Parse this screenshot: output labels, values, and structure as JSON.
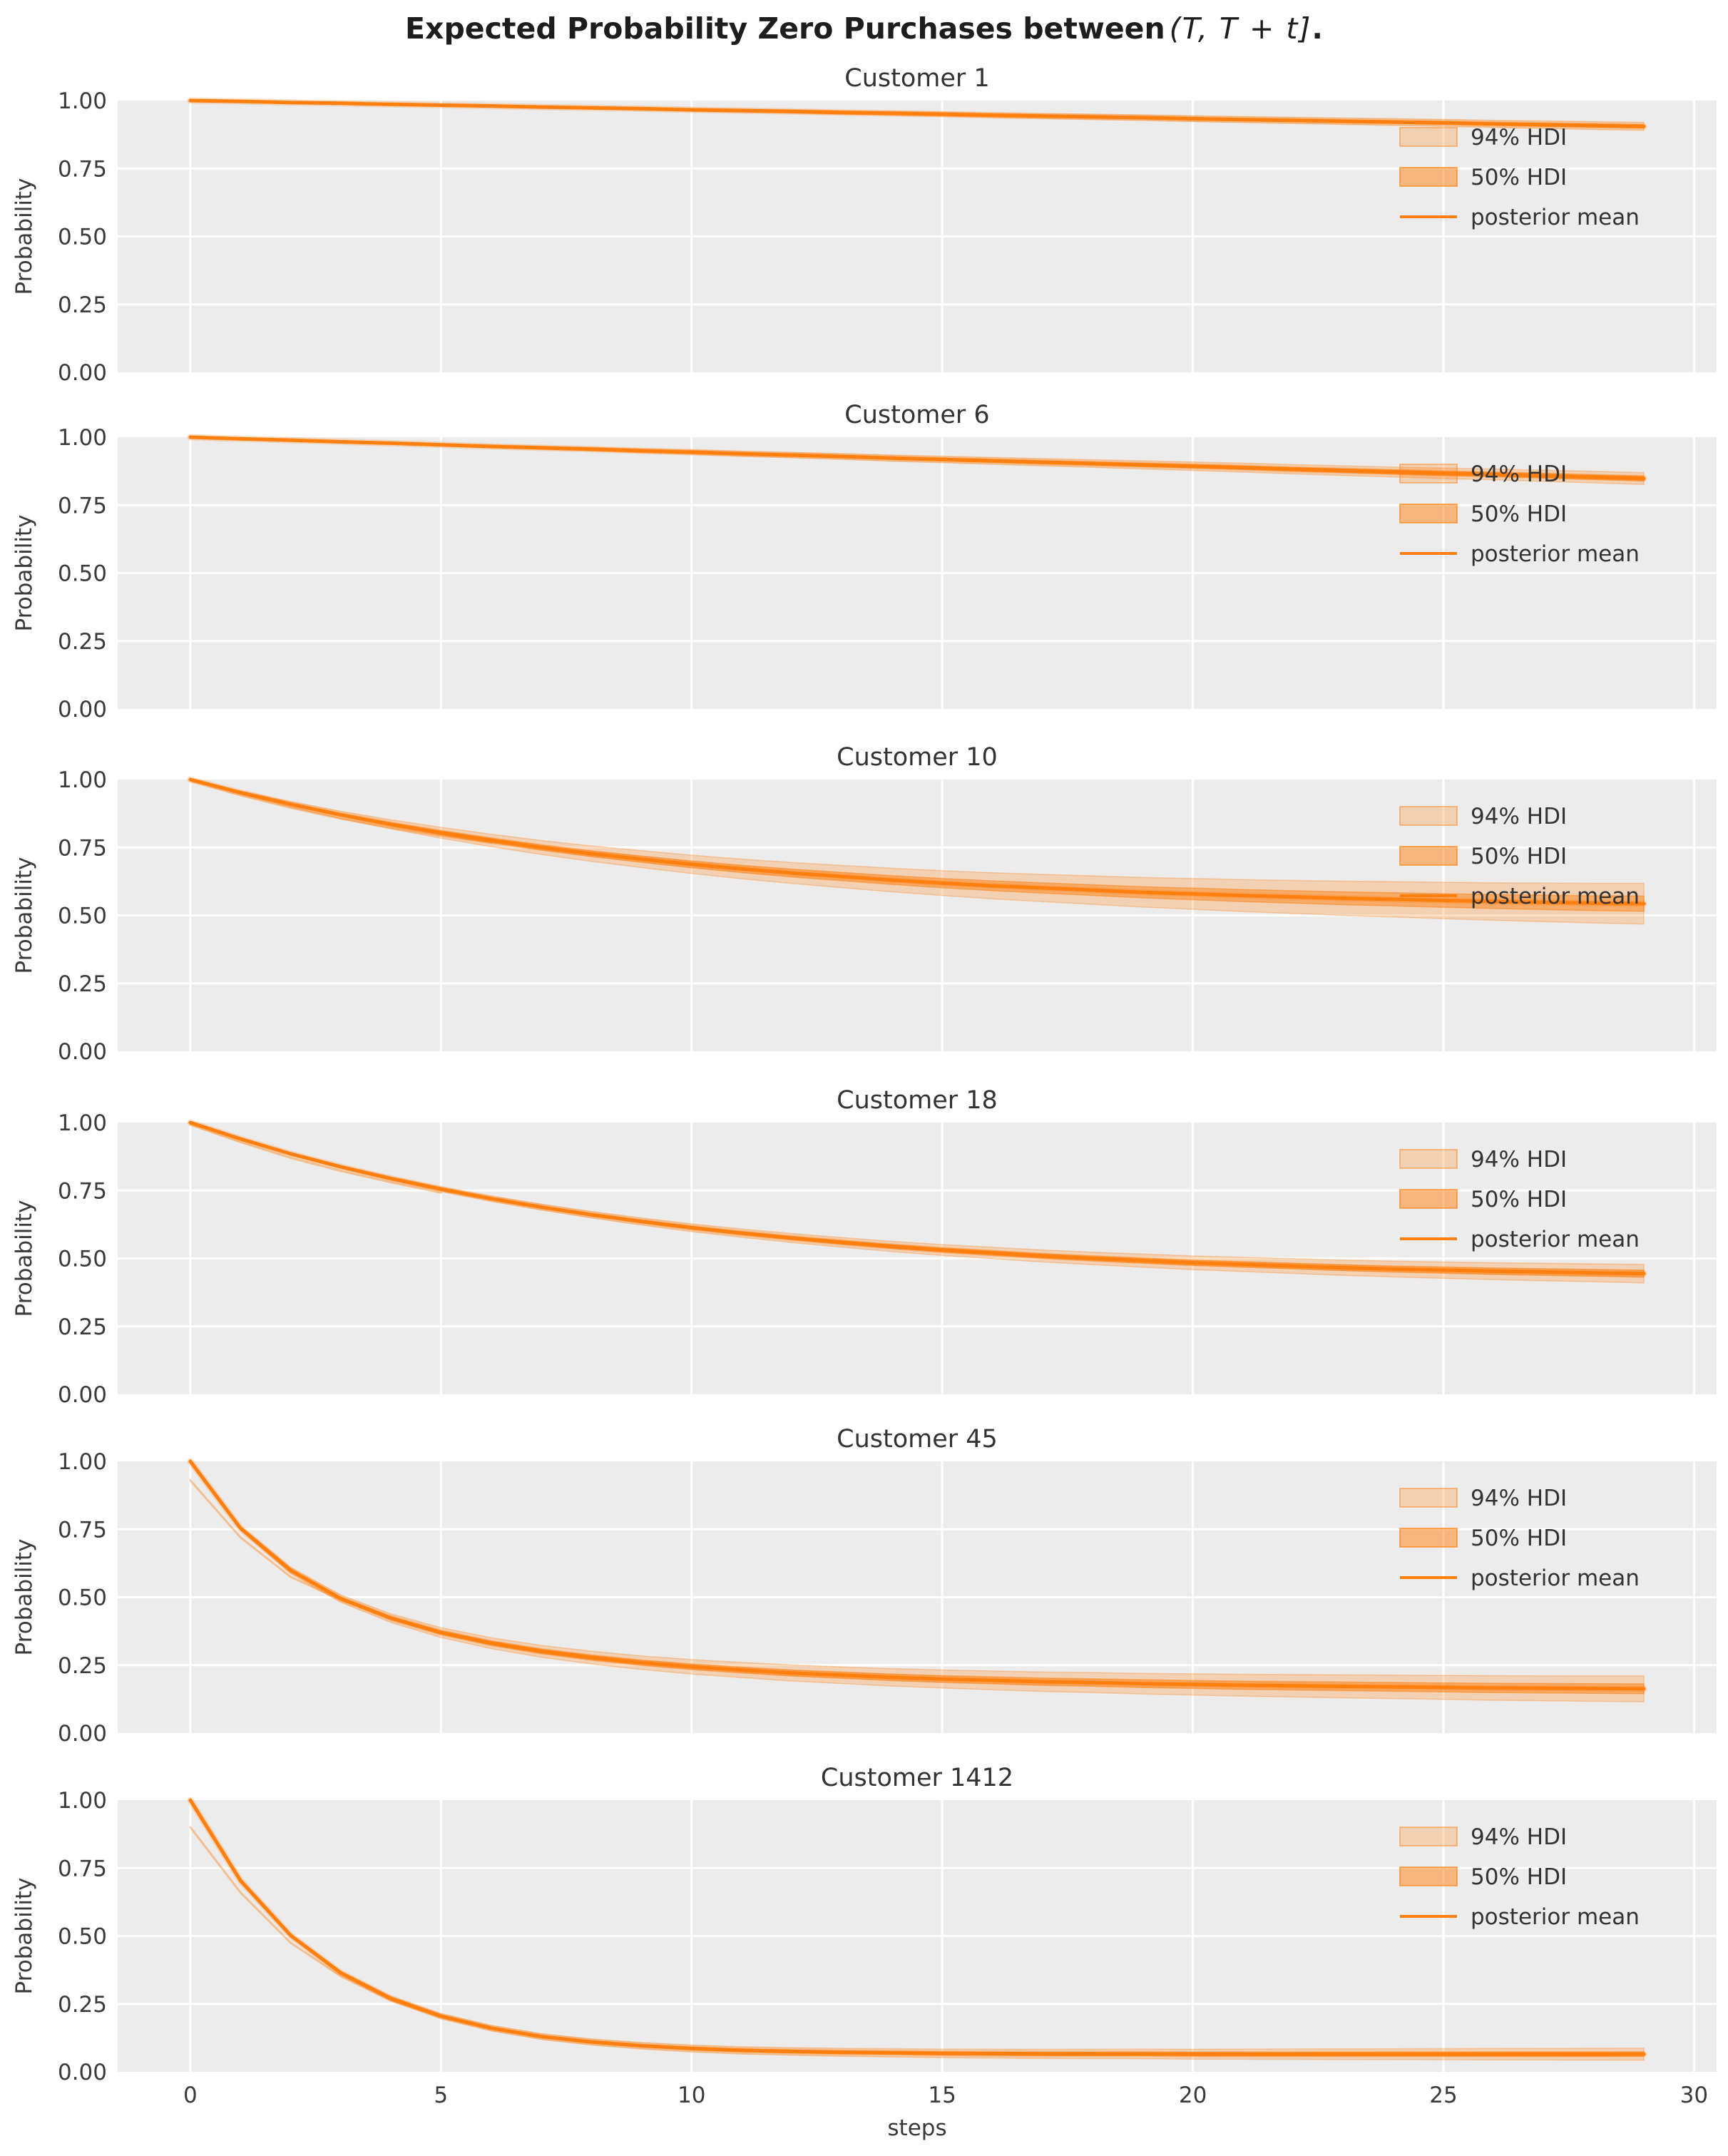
{
  "chart_data": {
    "type": "line",
    "suptitle": {
      "prefix": "Expected Probability Zero Purchases between",
      "math": "(T, T + t]",
      "suffix": "."
    },
    "xlabel": "steps",
    "ylabel": "Probability",
    "x_ticks": [
      0,
      5,
      10,
      15,
      20,
      25,
      30
    ],
    "y_ticks": [
      1.0,
      0.75,
      0.5,
      0.25,
      0.0
    ],
    "y_tick_labels": [
      "1.00",
      "0.75",
      "0.50",
      "0.25",
      "0.00"
    ],
    "xlim": [
      -1.45,
      30.45
    ],
    "ylim": [
      0,
      1
    ],
    "grid": true,
    "legend_position": "upper right",
    "legend": {
      "hdi94": "94% HDI",
      "hdi50": "50% HDI",
      "mean": "posterior mean"
    },
    "colors": {
      "background": "#ffffff",
      "plot_bg": "#ececec",
      "grid": "#ffffff",
      "orange": "#ff7f0e",
      "tick_text": "#3a3a3a",
      "title_text": "#333333",
      "suptitle_text": "#1d1d1d"
    },
    "steps": [
      0,
      1,
      2,
      3,
      4,
      5,
      6,
      7,
      8,
      9,
      10,
      11,
      12,
      13,
      14,
      15,
      16,
      17,
      18,
      19,
      20,
      21,
      22,
      23,
      24,
      25,
      26,
      27,
      28,
      29
    ],
    "subplots": [
      {
        "title": "Customer 1",
        "mean": [
          1.0,
          0.997,
          0.993,
          0.99,
          0.986,
          0.983,
          0.98,
          0.976,
          0.973,
          0.97,
          0.966,
          0.963,
          0.96,
          0.956,
          0.953,
          0.95,
          0.946,
          0.943,
          0.94,
          0.937,
          0.933,
          0.93,
          0.927,
          0.924,
          0.921,
          0.918,
          0.914,
          0.911,
          0.908,
          0.905
        ],
        "hdi94_end_halfwidth": 0.015,
        "hdi50_end_halfwidth": 0.006,
        "band_growth_exp": 0.9,
        "extra_trace": null
      },
      {
        "title": "Customer 6",
        "mean": [
          1.0,
          0.994,
          0.989,
          0.983,
          0.978,
          0.972,
          0.966,
          0.961,
          0.956,
          0.95,
          0.945,
          0.939,
          0.934,
          0.929,
          0.923,
          0.918,
          0.913,
          0.908,
          0.903,
          0.898,
          0.893,
          0.888,
          0.882,
          0.877,
          0.872,
          0.867,
          0.863,
          0.858,
          0.853,
          0.848
        ],
        "hdi94_end_halfwidth": 0.022,
        "hdi50_end_halfwidth": 0.009,
        "band_growth_exp": 0.9,
        "extra_trace": null
      },
      {
        "title": "Customer 10",
        "mean": [
          1.0,
          0.952,
          0.909,
          0.87,
          0.835,
          0.804,
          0.776,
          0.75,
          0.727,
          0.707,
          0.688,
          0.671,
          0.656,
          0.643,
          0.63,
          0.619,
          0.609,
          0.601,
          0.593,
          0.585,
          0.579,
          0.573,
          0.568,
          0.563,
          0.559,
          0.555,
          0.551,
          0.548,
          0.545,
          0.543
        ],
        "hdi94_end_halfwidth": 0.075,
        "hdi50_end_halfwidth": 0.028,
        "band_growth_exp": 0.75,
        "extra_trace": [
          [
            0,
            0.995
          ],
          [
            1,
            0.942
          ],
          [
            2,
            0.896
          ],
          [
            3,
            0.856
          ],
          [
            4,
            0.822
          ],
          [
            5,
            0.793
          ],
          [
            6,
            0.767
          ]
        ]
      },
      {
        "title": "Customer 18",
        "mean": [
          1.0,
          0.94,
          0.885,
          0.837,
          0.794,
          0.755,
          0.72,
          0.689,
          0.661,
          0.636,
          0.613,
          0.593,
          0.575,
          0.559,
          0.544,
          0.531,
          0.52,
          0.509,
          0.5,
          0.492,
          0.484,
          0.478,
          0.472,
          0.466,
          0.461,
          0.457,
          0.453,
          0.45,
          0.447,
          0.444
        ],
        "hdi94_end_halfwidth": 0.034,
        "hdi50_end_halfwidth": 0.013,
        "band_growth_exp": 0.8,
        "extra_trace": [
          [
            0,
            0.993
          ],
          [
            1,
            0.928
          ],
          [
            2,
            0.87
          ],
          [
            3,
            0.822
          ],
          [
            4,
            0.78
          ],
          [
            5,
            0.742
          ]
        ]
      },
      {
        "title": "Customer 45",
        "mean": [
          1.0,
          0.754,
          0.599,
          0.495,
          0.423,
          0.37,
          0.331,
          0.301,
          0.278,
          0.259,
          0.244,
          0.232,
          0.221,
          0.213,
          0.205,
          0.199,
          0.194,
          0.189,
          0.186,
          0.182,
          0.179,
          0.176,
          0.174,
          0.172,
          0.17,
          0.168,
          0.166,
          0.165,
          0.164,
          0.163
        ],
        "hdi94_end_halfwidth": 0.048,
        "hdi50_end_halfwidth": 0.018,
        "band_growth_exp": 0.55,
        "extra_trace": [
          [
            0,
            0.93
          ],
          [
            1,
            0.72
          ],
          [
            2,
            0.575
          ],
          [
            3,
            0.49
          ],
          [
            4,
            0.425
          ],
          [
            5,
            0.372
          ],
          [
            6,
            0.333
          ]
        ]
      },
      {
        "title": "Customer 1412",
        "mean": [
          1.0,
          0.704,
          0.502,
          0.364,
          0.27,
          0.205,
          0.161,
          0.13,
          0.11,
          0.096,
          0.086,
          0.079,
          0.075,
          0.072,
          0.07,
          0.068,
          0.067,
          0.066,
          0.066,
          0.066,
          0.065,
          0.065,
          0.065,
          0.065,
          0.065,
          0.065,
          0.065,
          0.065,
          0.065,
          0.065
        ],
        "hdi94_end_halfwidth": 0.022,
        "hdi50_end_halfwidth": 0.008,
        "band_growth_exp": 0.5,
        "extra_trace": [
          [
            0,
            0.9
          ],
          [
            1,
            0.66
          ],
          [
            2,
            0.475
          ],
          [
            3,
            0.352
          ],
          [
            4,
            0.263
          ],
          [
            5,
            0.203
          ],
          [
            6,
            0.16
          ]
        ]
      }
    ]
  }
}
